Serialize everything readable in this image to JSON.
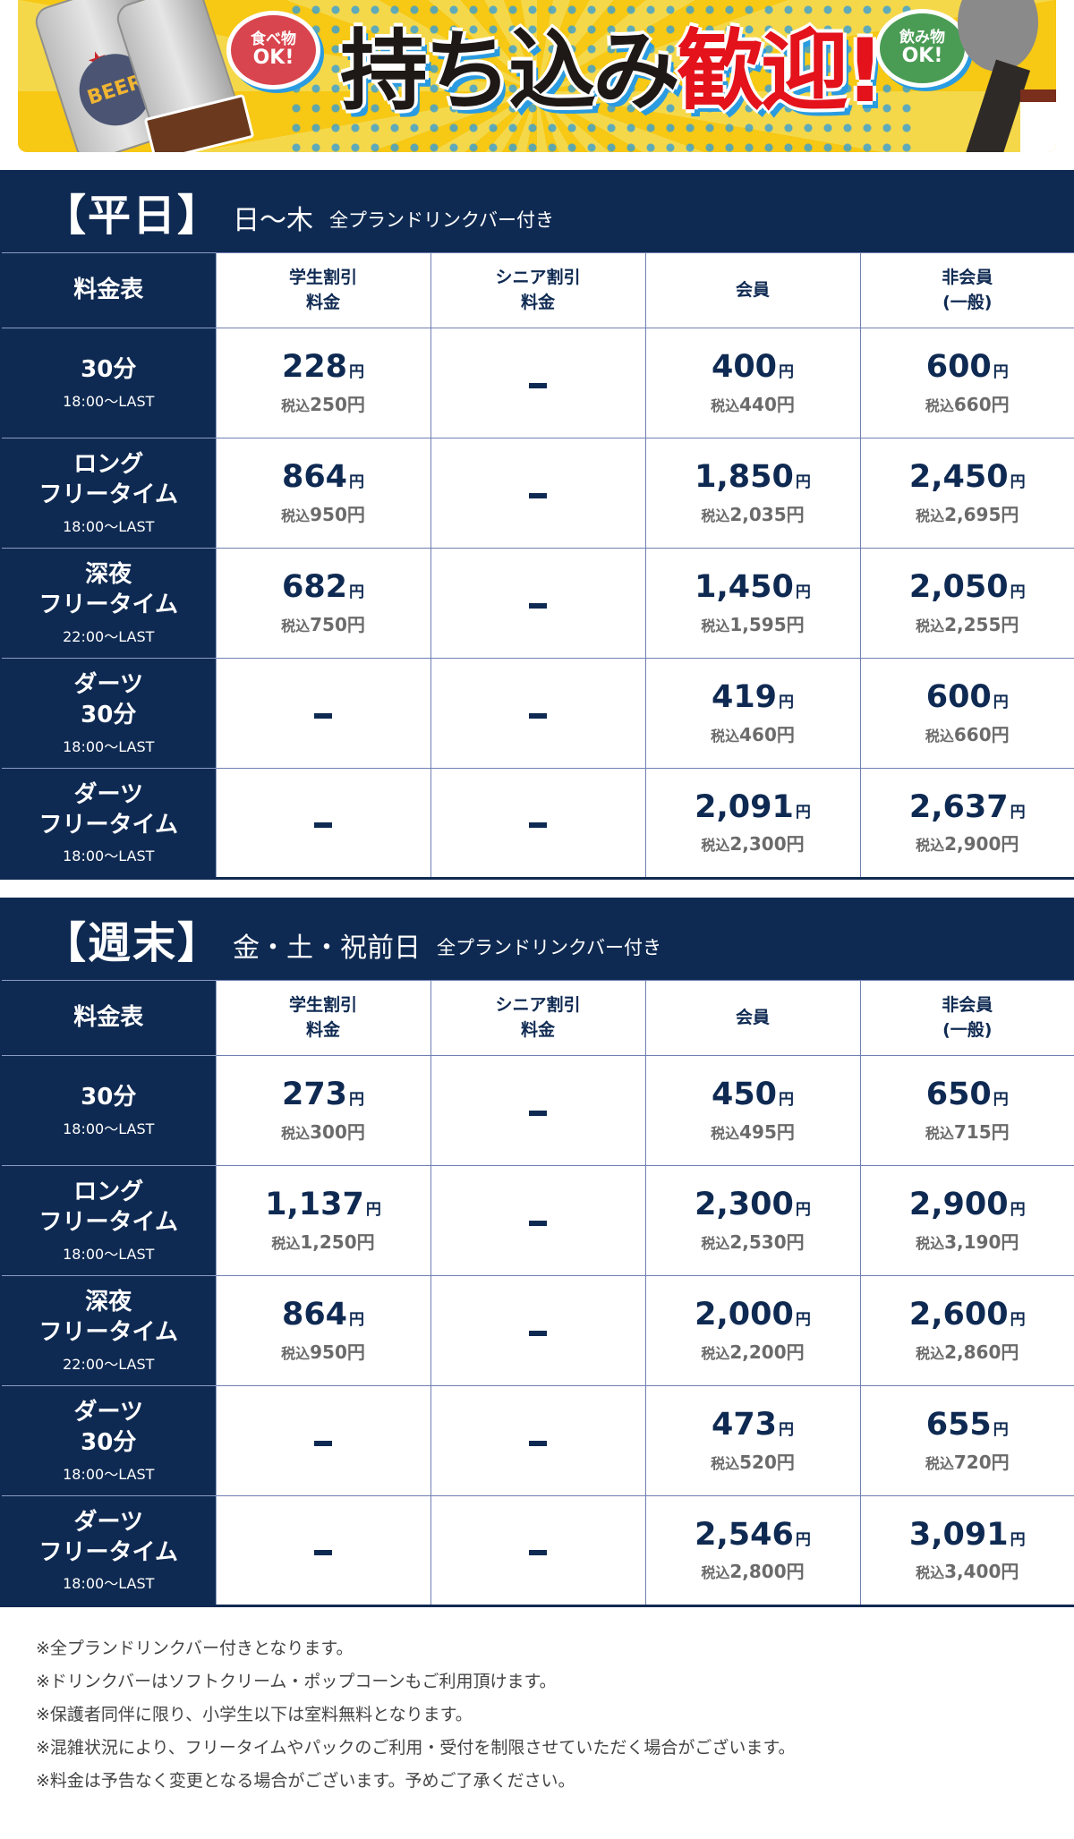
{
  "banner": {
    "headline_black": "持ち込み",
    "headline_red": "歓迎!",
    "food_bubble": {
      "line1": "食べ物",
      "line2": "OK!"
    },
    "drink_bubble": {
      "line1": "飲み物",
      "line2": "OK!"
    },
    "can_label": "BEER",
    "colors": {
      "yellow": "#f7c814",
      "red": "#e3121b",
      "blue": "#2a9be0",
      "food_bubble": "#d9454e",
      "drink_bubble": "#4a9c54"
    }
  },
  "colors": {
    "navy": "#0f2a52",
    "grid": "#6f7fb3",
    "tax_text": "#6b6b6b"
  },
  "columns": [
    "料金表",
    "学生割引\n料金",
    "シニア割引\n料金",
    "会員",
    "非会員\n(一般)"
  ],
  "sections": [
    {
      "title": "【平日】",
      "days": "日〜木",
      "subtitle": "全プランドリンクバー付き",
      "rows": [
        {
          "name": "30分",
          "time": "18:00〜LAST",
          "student": {
            "price": "228",
            "tax": "250"
          },
          "senior": null,
          "member": {
            "price": "400",
            "tax": "440"
          },
          "nonmember": {
            "price": "600",
            "tax": "660"
          }
        },
        {
          "name": "ロング\nフリータイム",
          "time": "18:00〜LAST",
          "student": {
            "price": "864",
            "tax": "950"
          },
          "senior": null,
          "member": {
            "price": "1,850",
            "tax": "2,035"
          },
          "nonmember": {
            "price": "2,450",
            "tax": "2,695"
          }
        },
        {
          "name": "深夜\nフリータイム",
          "time": "22:00〜LAST",
          "student": {
            "price": "682",
            "tax": "750"
          },
          "senior": null,
          "member": {
            "price": "1,450",
            "tax": "1,595"
          },
          "nonmember": {
            "price": "2,050",
            "tax": "2,255"
          }
        },
        {
          "name": "ダーツ\n30分",
          "time": "18:00〜LAST",
          "student": null,
          "senior": null,
          "member": {
            "price": "419",
            "tax": "460"
          },
          "nonmember": {
            "price": "600",
            "tax": "660"
          }
        },
        {
          "name": "ダーツ\nフリータイム",
          "time": "18:00〜LAST",
          "student": null,
          "senior": null,
          "member": {
            "price": "2,091",
            "tax": "2,300"
          },
          "nonmember": {
            "price": "2,637",
            "tax": "2,900"
          }
        }
      ]
    },
    {
      "title": "【週末】",
      "days": "金・土・祝前日",
      "subtitle": "全プランドリンクバー付き",
      "rows": [
        {
          "name": "30分",
          "time": "18:00〜LAST",
          "student": {
            "price": "273",
            "tax": "300"
          },
          "senior": null,
          "member": {
            "price": "450",
            "tax": "495"
          },
          "nonmember": {
            "price": "650",
            "tax": "715"
          }
        },
        {
          "name": "ロング\nフリータイム",
          "time": "18:00〜LAST",
          "student": {
            "price": "1,137",
            "tax": "1,250"
          },
          "senior": null,
          "member": {
            "price": "2,300",
            "tax": "2,530"
          },
          "nonmember": {
            "price": "2,900",
            "tax": "3,190"
          }
        },
        {
          "name": "深夜\nフリータイム",
          "time": "22:00〜LAST",
          "student": {
            "price": "864",
            "tax": "950"
          },
          "senior": null,
          "member": {
            "price": "2,000",
            "tax": "2,200"
          },
          "nonmember": {
            "price": "2,600",
            "tax": "2,860"
          }
        },
        {
          "name": "ダーツ\n30分",
          "time": "18:00〜LAST",
          "student": null,
          "senior": null,
          "member": {
            "price": "473",
            "tax": "520"
          },
          "nonmember": {
            "price": "655",
            "tax": "720"
          }
        },
        {
          "name": "ダーツ\nフリータイム",
          "time": "18:00〜LAST",
          "student": null,
          "senior": null,
          "member": {
            "price": "2,546",
            "tax": "2,800"
          },
          "nonmember": {
            "price": "3,091",
            "tax": "3,400"
          }
        }
      ]
    }
  ],
  "labels": {
    "yen": "円",
    "tax_prefix": "税込",
    "dash": "–"
  },
  "notes": [
    "※全プランドリンクバー付きとなります。",
    "※ドリンクバーはソフトクリーム・ポップコーンもご利用頂けます。",
    "※保護者同伴に限り、小学生以下は室料無料となります。",
    "※混雑状況により、フリータイムやパックのご利用・受付を制限させていただく場合がございます。",
    "※料金は予告なく変更となる場合がございます。予めご了承ください。"
  ]
}
